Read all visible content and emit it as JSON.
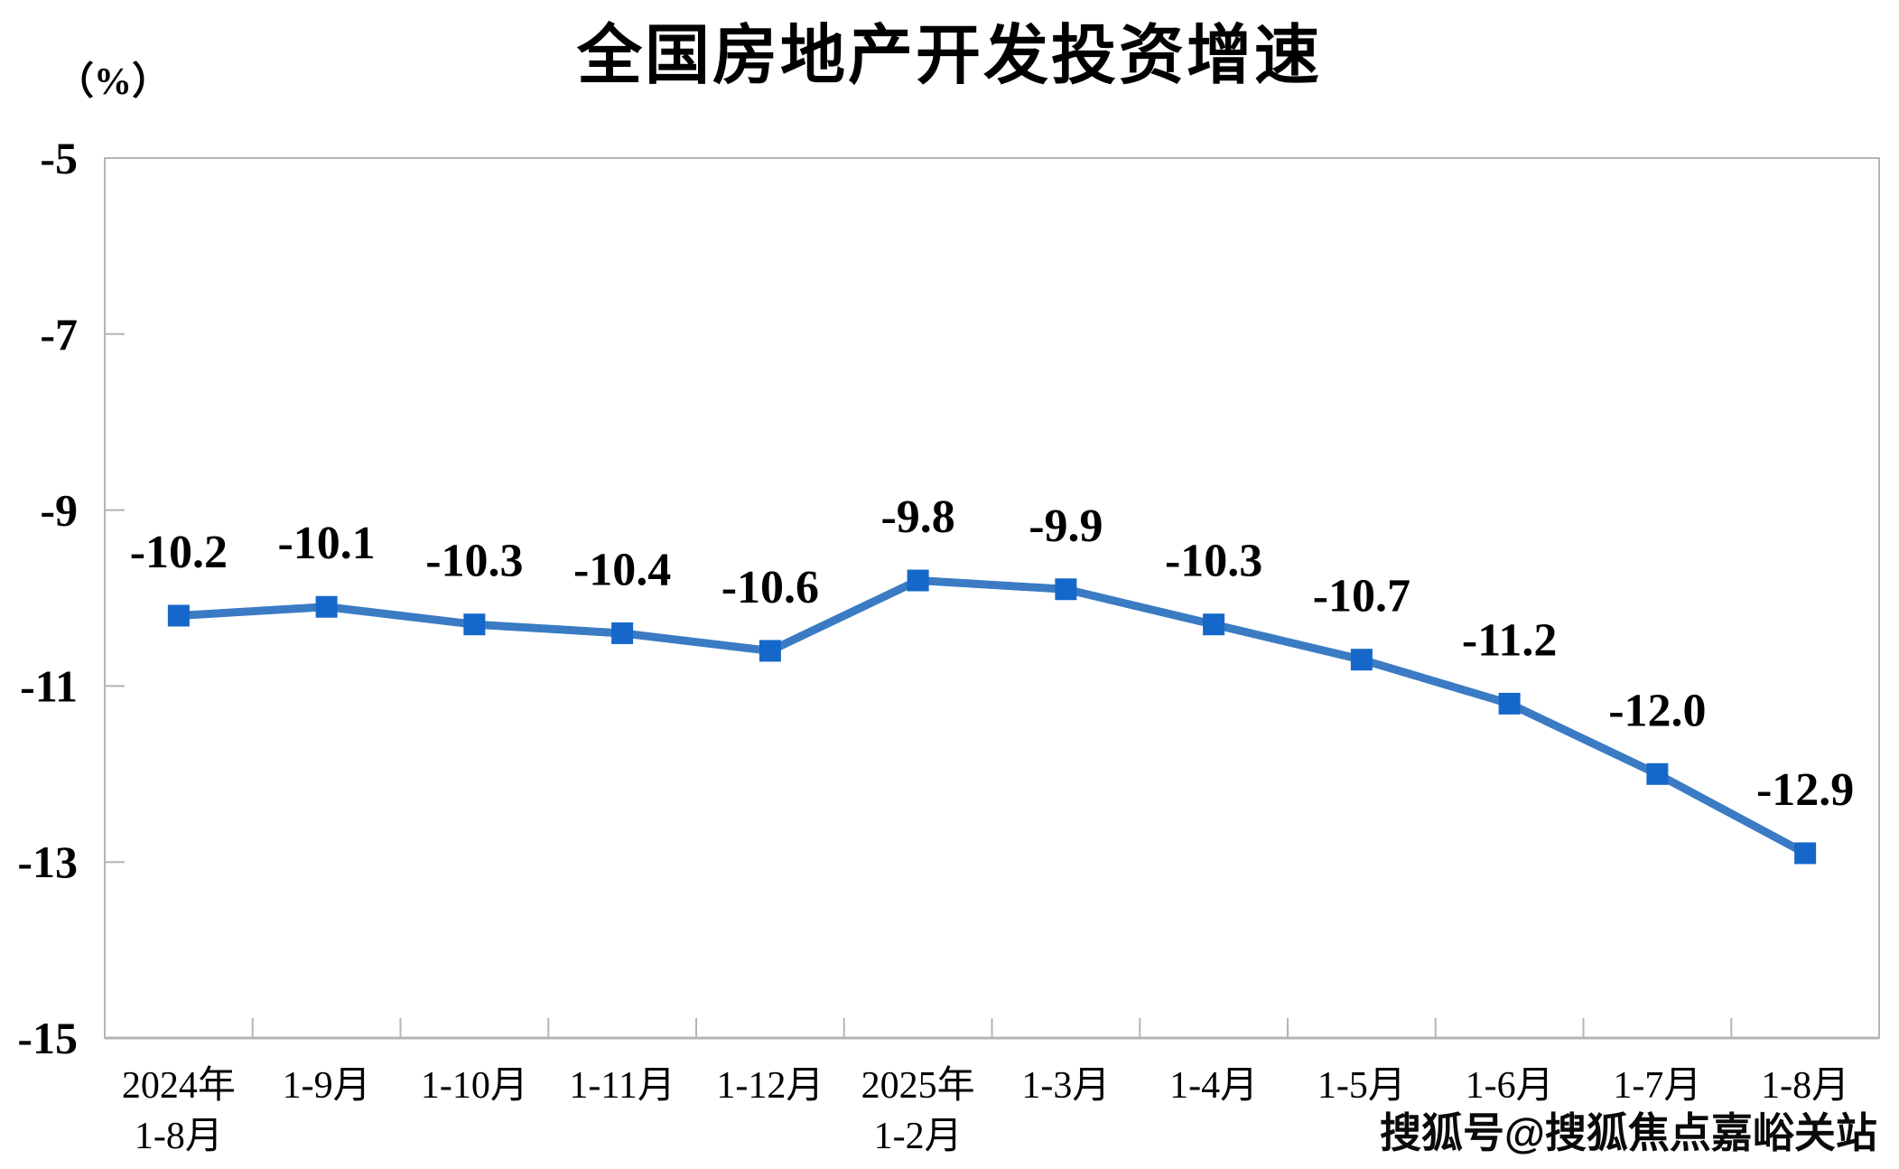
{
  "chart_data": {
    "type": "line",
    "title": "全国房地产开发投资增速",
    "unit_label": "（%）",
    "categories": [
      [
        "2024年",
        "1-8月"
      ],
      [
        "1-9月"
      ],
      [
        "1-10月"
      ],
      [
        "1-11月"
      ],
      [
        "1-12月"
      ],
      [
        "2025年",
        "1-2月"
      ],
      [
        "1-3月"
      ],
      [
        "1-4月"
      ],
      [
        "1-5月"
      ],
      [
        "1-6月"
      ],
      [
        "1-7月"
      ],
      [
        "1-8月"
      ]
    ],
    "values": [
      -10.2,
      -10.1,
      -10.3,
      -10.4,
      -10.6,
      -9.8,
      -9.9,
      -10.3,
      -10.7,
      -11.2,
      -12.0,
      -12.9
    ],
    "data_labels": [
      "-10.2",
      "-10.1",
      "-10.3",
      "-10.4",
      "-10.6",
      "-9.8",
      "-9.9",
      "-10.3",
      "-10.7",
      "-11.2",
      "-12.0",
      "-12.9"
    ],
    "y_ticks": [
      -5,
      -7,
      -9,
      -11,
      -13,
      -15
    ],
    "ylim": [
      -15,
      -5
    ],
    "grid": false,
    "legend": "none",
    "line_color": "#3A7BC4",
    "marker_color": "#1568C9",
    "axis_color": "#B5B5B5",
    "text_color": "#000000"
  },
  "watermark": {
    "text": "搜狐号@搜狐焦点嘉峪关站"
  }
}
